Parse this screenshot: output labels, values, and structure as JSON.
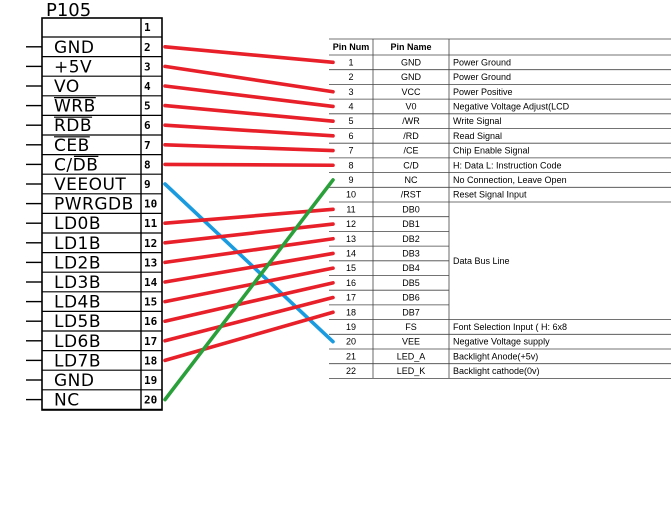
{
  "connector": {
    "title": "P105",
    "pin1_label": "1",
    "pins": [
      {
        "num": "2",
        "name": "GND",
        "overbar": ""
      },
      {
        "num": "3",
        "name": "+5V",
        "overbar": ""
      },
      {
        "num": "4",
        "name": "VO",
        "overbar": ""
      },
      {
        "num": "5",
        "name": "WRB",
        "overbar": "full"
      },
      {
        "num": "6",
        "name": "RDB",
        "overbar": "full"
      },
      {
        "num": "7",
        "name": "CEB",
        "overbar": "full"
      },
      {
        "num": "8",
        "name": "C/DB",
        "overbar": "partial"
      },
      {
        "num": "9",
        "name": "VEEOUT",
        "overbar": ""
      },
      {
        "num": "10",
        "name": "PWRGDB",
        "overbar": ""
      },
      {
        "num": "11",
        "name": "LD0B",
        "overbar": ""
      },
      {
        "num": "12",
        "name": "LD1B",
        "overbar": ""
      },
      {
        "num": "13",
        "name": "LD2B",
        "overbar": ""
      },
      {
        "num": "14",
        "name": "LD3B",
        "overbar": ""
      },
      {
        "num": "15",
        "name": "LD4B",
        "overbar": ""
      },
      {
        "num": "16",
        "name": "LD5B",
        "overbar": ""
      },
      {
        "num": "17",
        "name": "LD6B",
        "overbar": ""
      },
      {
        "num": "18",
        "name": "LD7B",
        "overbar": ""
      },
      {
        "num": "19",
        "name": "GND",
        "overbar": ""
      },
      {
        "num": "20",
        "name": "NC",
        "overbar": ""
      }
    ]
  },
  "pin_table": {
    "headers": [
      "Pin Num",
      "Pin Name",
      ""
    ],
    "rows": [
      {
        "num": "1",
        "name": "GND",
        "desc": "Power Ground"
      },
      {
        "num": "2",
        "name": "GND",
        "desc": "Power Ground"
      },
      {
        "num": "3",
        "name": "VCC",
        "desc": "Power Positive"
      },
      {
        "num": "4",
        "name": "V0",
        "desc": "Negative Voltage Adjust(LCD"
      },
      {
        "num": "5",
        "name": "/WR",
        "desc": "Write Signal"
      },
      {
        "num": "6",
        "name": "/RD",
        "desc": "Read Signal"
      },
      {
        "num": "7",
        "name": "/CE",
        "desc": "Chip Enable Signal"
      },
      {
        "num": "8",
        "name": "C/D",
        "desc": "H: Data L: Instruction Code"
      },
      {
        "num": "9",
        "name": "NC",
        "desc": "No Connection, Leave Open"
      },
      {
        "num": "10",
        "name": "/RST",
        "desc": "Reset Signal Input"
      },
      {
        "num": "11",
        "name": "DB0",
        "desc": ""
      },
      {
        "num": "12",
        "name": "DB1",
        "desc": ""
      },
      {
        "num": "13",
        "name": "DB2",
        "desc": ""
      },
      {
        "num": "14",
        "name": "DB3",
        "desc": ""
      },
      {
        "num": "15",
        "name": "DB4",
        "desc": ""
      },
      {
        "num": "16",
        "name": "DB5",
        "desc": ""
      },
      {
        "num": "17",
        "name": "DB6",
        "desc": ""
      },
      {
        "num": "18",
        "name": "DB7",
        "desc": ""
      },
      {
        "num": "19",
        "name": "FS",
        "desc": "Font Selection Input ( H: 6x8"
      },
      {
        "num": "20",
        "name": "VEE",
        "desc": "Negative Voltage supply"
      },
      {
        "num": "21",
        "name": "LED_A",
        "desc": "Backlight Anode(+5v)"
      },
      {
        "num": "22",
        "name": "LED_K",
        "desc": "Backlight cathode(0v)"
      }
    ],
    "data_bus_label": "Data Bus Line"
  },
  "wires": [
    {
      "from": "2",
      "to": "1",
      "color": "#e8202a"
    },
    {
      "from": "3",
      "to": "3",
      "color": "#e8202a"
    },
    {
      "from": "4",
      "to": "4",
      "color": "#e8202a"
    },
    {
      "from": "5",
      "to": "5",
      "color": "#e8202a"
    },
    {
      "from": "6",
      "to": "6",
      "color": "#e8202a"
    },
    {
      "from": "7",
      "to": "7",
      "color": "#e8202a"
    },
    {
      "from": "8",
      "to": "8",
      "color": "#e8202a"
    },
    {
      "from": "9",
      "to": "20",
      "color": "#1a9be0"
    },
    {
      "from": "11",
      "to": "11",
      "color": "#e8202a"
    },
    {
      "from": "12",
      "to": "12",
      "color": "#e8202a"
    },
    {
      "from": "13",
      "to": "13",
      "color": "#e8202a"
    },
    {
      "from": "14",
      "to": "14",
      "color": "#e8202a"
    },
    {
      "from": "15",
      "to": "15",
      "color": "#e8202a"
    },
    {
      "from": "16",
      "to": "16",
      "color": "#e8202a"
    },
    {
      "from": "17",
      "to": "17",
      "color": "#e8202a"
    },
    {
      "from": "18",
      "to": "18",
      "color": "#e8202a"
    },
    {
      "from": "20",
      "to": "9",
      "color": "#2aa03a"
    }
  ]
}
